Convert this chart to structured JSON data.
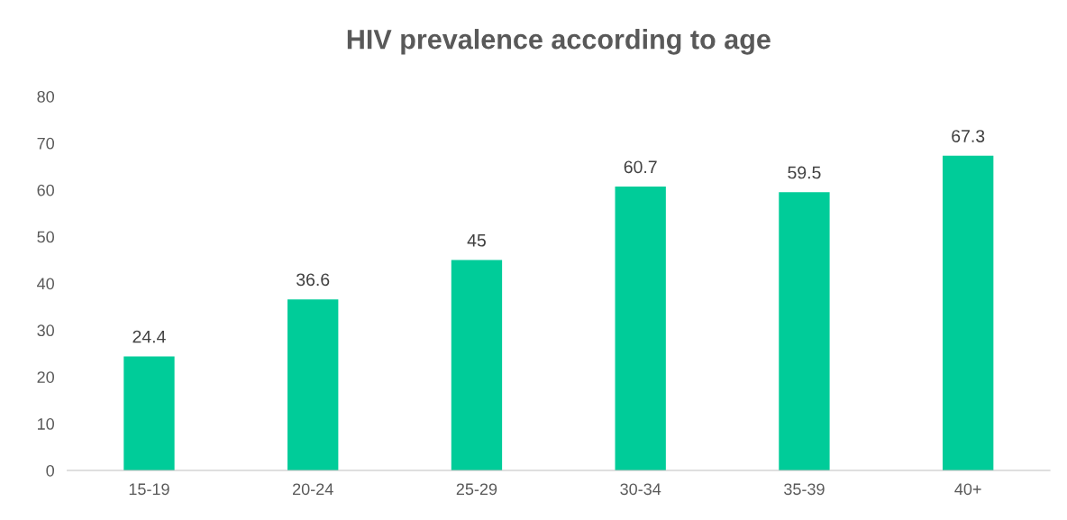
{
  "chart_data": {
    "type": "bar",
    "title": "HIV prevalence according to age",
    "categories": [
      "15-19",
      "20-24",
      "25-29",
      "30-34",
      "35-39",
      "40+"
    ],
    "values": [
      24.4,
      36.6,
      45,
      60.7,
      59.5,
      67.3
    ],
    "value_labels": [
      "24.4",
      "36.6",
      "45",
      "60.7",
      "59.5",
      "67.3"
    ],
    "color": "#00cc99",
    "ylim": [
      0,
      80
    ],
    "yticks": [
      0,
      10,
      20,
      30,
      40,
      50,
      60,
      70,
      80
    ],
    "grid": false,
    "legend": false
  }
}
